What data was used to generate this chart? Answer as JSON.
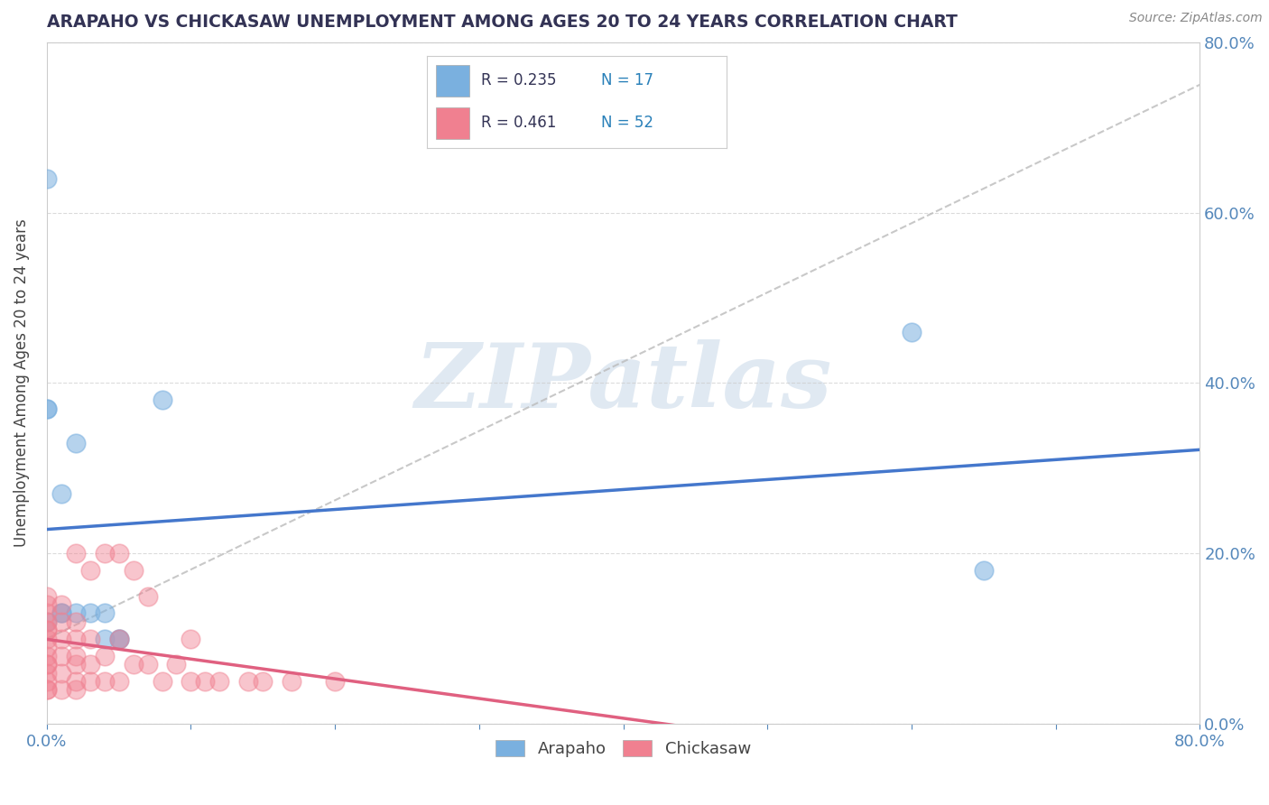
{
  "title": "ARAPAHO VS CHICKASAW UNEMPLOYMENT AMONG AGES 20 TO 24 YEARS CORRELATION CHART",
  "source": "Source: ZipAtlas.com",
  "xlabel": "",
  "ylabel": "Unemployment Among Ages 20 to 24 years",
  "xlim": [
    0.0,
    0.8
  ],
  "ylim": [
    0.0,
    0.8
  ],
  "xticks": [
    0.0,
    0.1,
    0.2,
    0.3,
    0.4,
    0.5,
    0.6,
    0.7,
    0.8
  ],
  "yticks": [
    0.0,
    0.2,
    0.4,
    0.6,
    0.8
  ],
  "arapaho_color": "#7ab0df",
  "chickasaw_color": "#f08090",
  "arapaho_R": 0.235,
  "arapaho_N": 17,
  "chickasaw_R": 0.461,
  "chickasaw_N": 52,
  "arapaho_x": [
    0.0,
    0.0,
    0.0,
    0.0,
    0.01,
    0.01,
    0.01,
    0.02,
    0.02,
    0.03,
    0.04,
    0.04,
    0.05,
    0.05,
    0.08,
    0.6,
    0.65
  ],
  "arapaho_y": [
    0.64,
    0.37,
    0.37,
    0.12,
    0.27,
    0.13,
    0.13,
    0.33,
    0.13,
    0.13,
    0.13,
    0.1,
    0.1,
    0.1,
    0.38,
    0.46,
    0.18
  ],
  "chickasaw_x": [
    0.0,
    0.0,
    0.0,
    0.0,
    0.0,
    0.0,
    0.0,
    0.0,
    0.0,
    0.0,
    0.0,
    0.0,
    0.0,
    0.0,
    0.0,
    0.01,
    0.01,
    0.01,
    0.01,
    0.01,
    0.01,
    0.02,
    0.02,
    0.02,
    0.02,
    0.02,
    0.02,
    0.02,
    0.03,
    0.03,
    0.03,
    0.03,
    0.04,
    0.04,
    0.04,
    0.05,
    0.05,
    0.05,
    0.06,
    0.06,
    0.07,
    0.07,
    0.08,
    0.09,
    0.1,
    0.1,
    0.11,
    0.12,
    0.14,
    0.15,
    0.17,
    0.2
  ],
  "chickasaw_y": [
    0.04,
    0.04,
    0.05,
    0.06,
    0.07,
    0.07,
    0.08,
    0.09,
    0.1,
    0.11,
    0.11,
    0.12,
    0.13,
    0.14,
    0.15,
    0.04,
    0.06,
    0.08,
    0.1,
    0.12,
    0.14,
    0.04,
    0.05,
    0.07,
    0.08,
    0.1,
    0.12,
    0.2,
    0.05,
    0.07,
    0.1,
    0.18,
    0.05,
    0.08,
    0.2,
    0.05,
    0.1,
    0.2,
    0.07,
    0.18,
    0.07,
    0.15,
    0.05,
    0.07,
    0.05,
    0.1,
    0.05,
    0.05,
    0.05,
    0.05,
    0.05,
    0.05
  ],
  "watermark": "ZIPatlas",
  "background_color": "#ffffff",
  "title_color": "#333355",
  "axis_label_color": "#333355",
  "tick_color": "#5588bb",
  "legend_r_color": "#333355",
  "legend_n_color": "#2980b9",
  "arapaho_line_color": "#4477cc",
  "chickasaw_line_color": "#e06080",
  "diag_line_color": "#cccccc"
}
